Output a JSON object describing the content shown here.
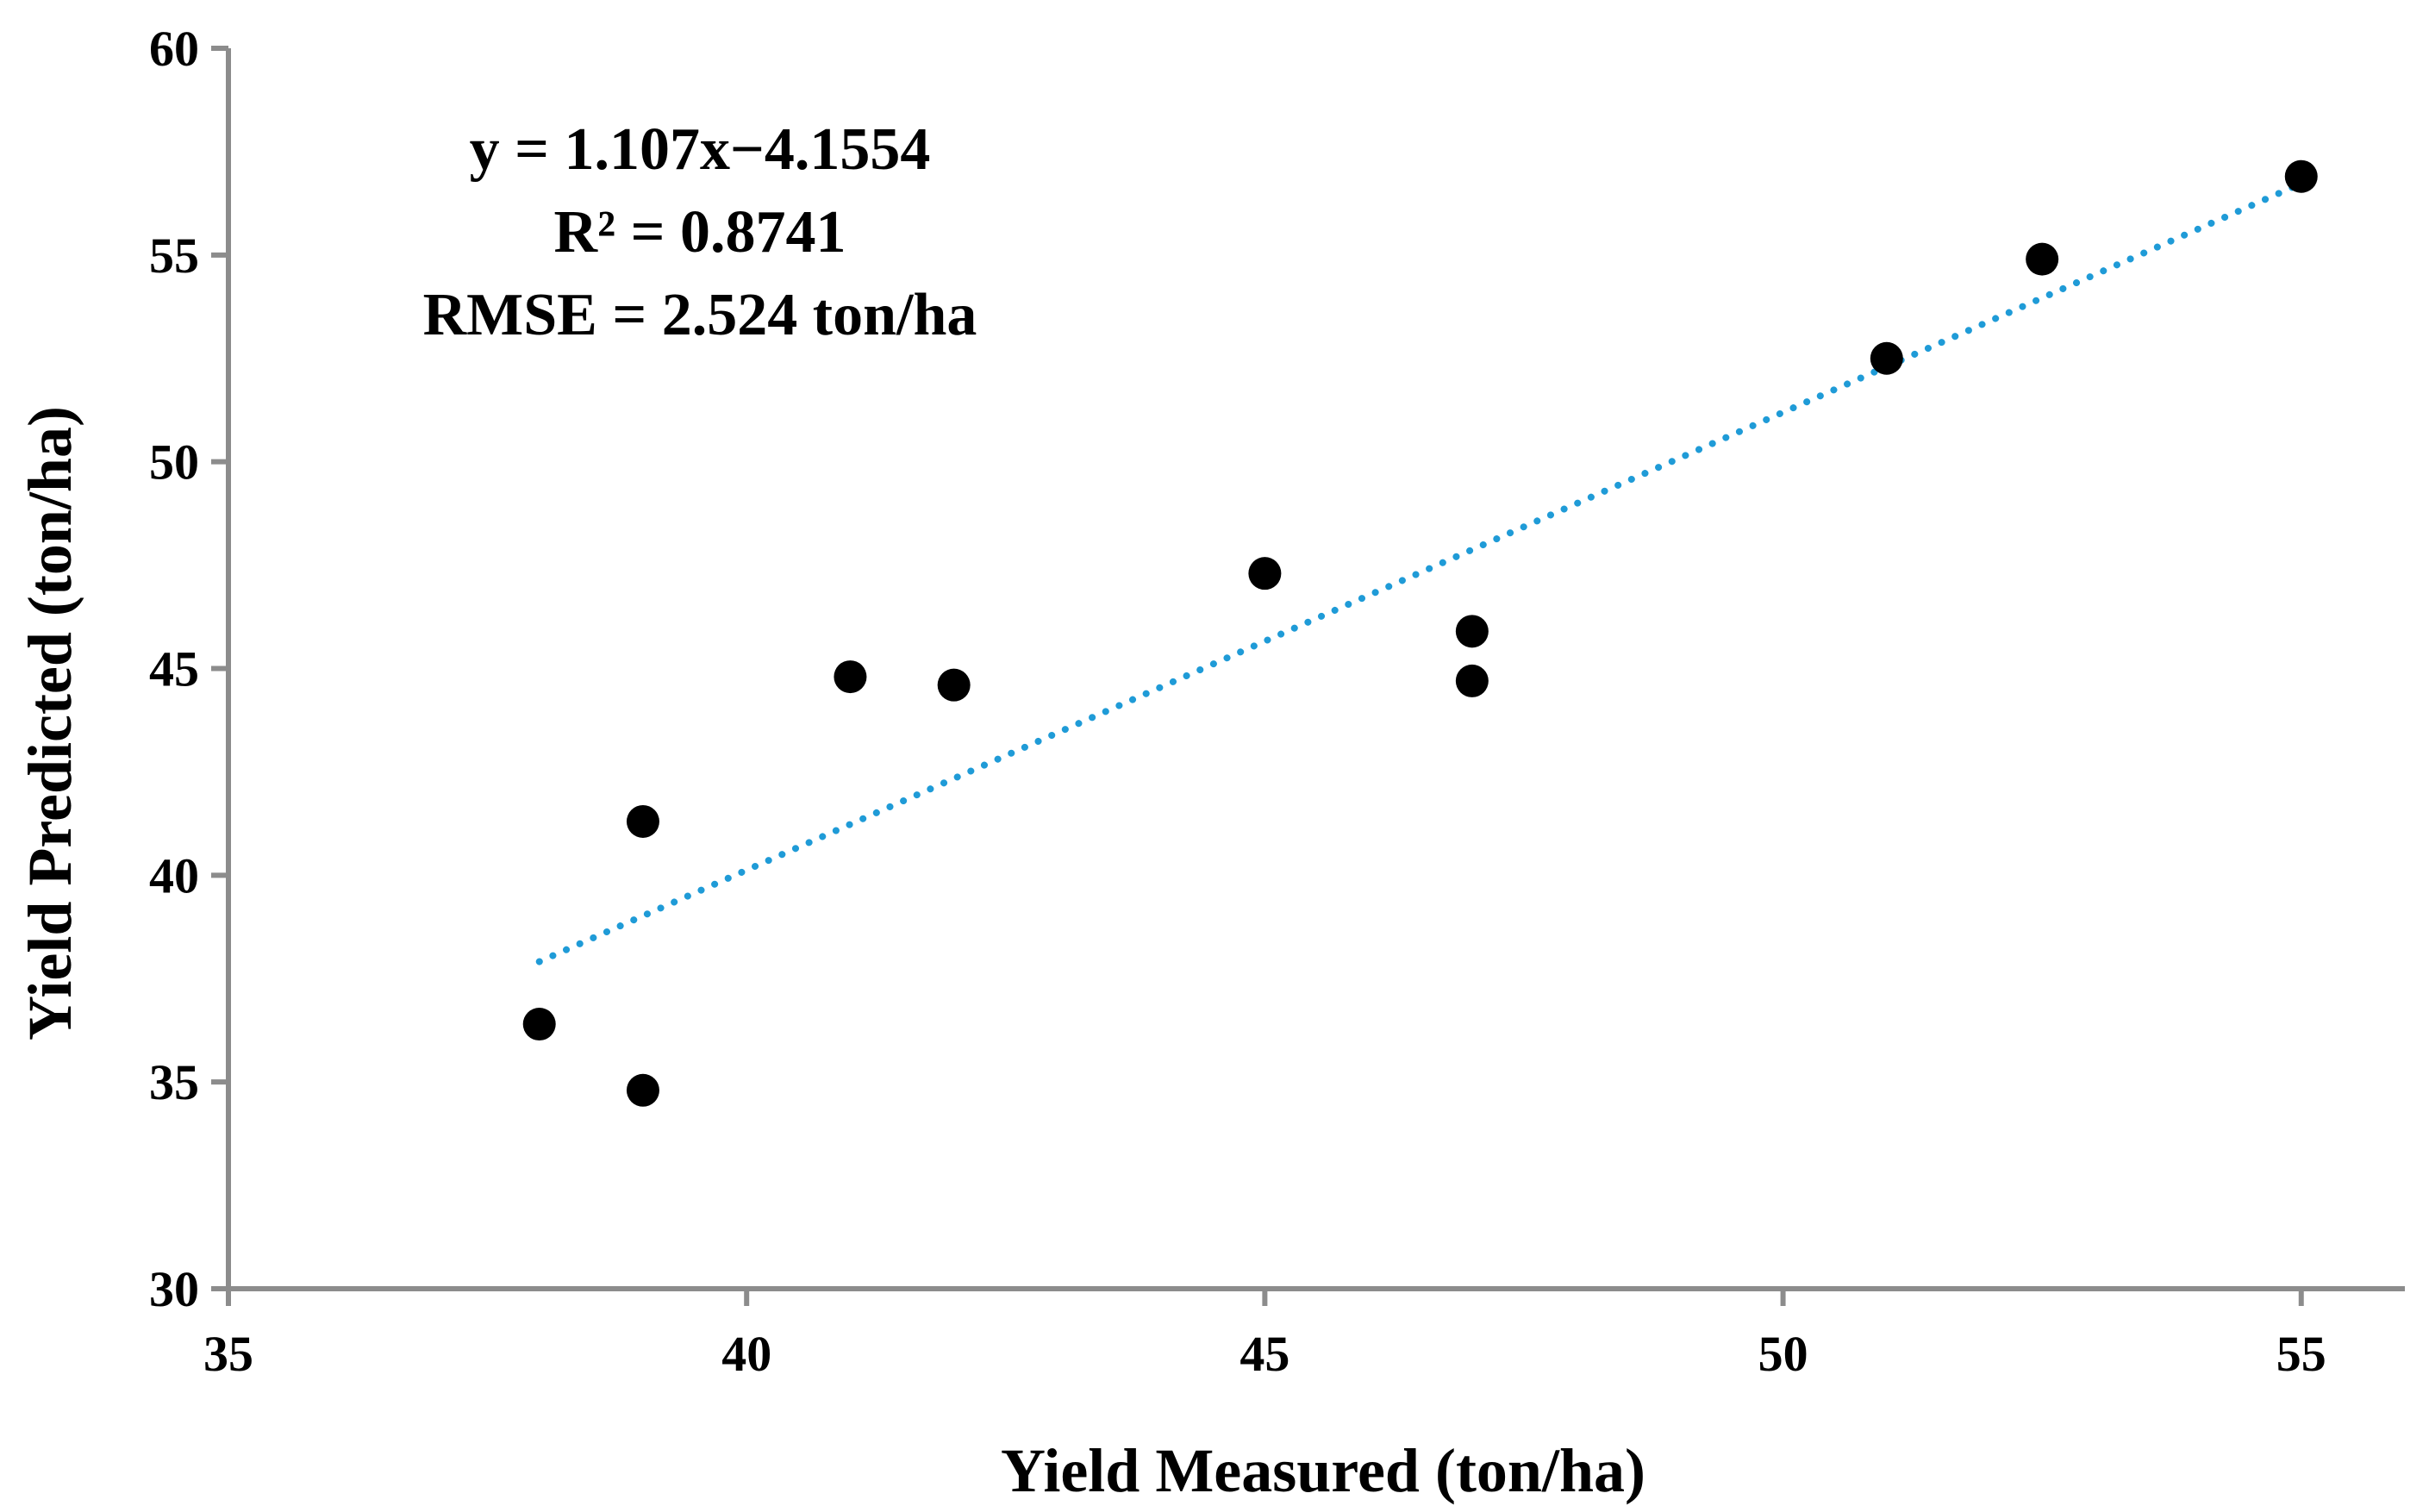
{
  "chart_data": {
    "type": "scatter",
    "title": "",
    "xlabel": "Yield Measured (ton/ha)",
    "ylabel": "Yield Predicted (ton/ha)",
    "xlim": [
      35,
      56
    ],
    "ylim": [
      30,
      60
    ],
    "xticks": [
      35,
      40,
      45,
      50,
      55
    ],
    "yticks": [
      30,
      35,
      40,
      45,
      50,
      55,
      60
    ],
    "grid": false,
    "series": [
      {
        "name": "Observations",
        "color": "#000000",
        "points": [
          {
            "x": 38,
            "y": 36.4
          },
          {
            "x": 39,
            "y": 41.3
          },
          {
            "x": 39,
            "y": 34.8
          },
          {
            "x": 41,
            "y": 44.8
          },
          {
            "x": 42,
            "y": 44.6
          },
          {
            "x": 45,
            "y": 47.3
          },
          {
            "x": 47,
            "y": 45.9
          },
          {
            "x": 47,
            "y": 44.7
          },
          {
            "x": 51,
            "y": 52.5
          },
          {
            "x": 52.5,
            "y": 54.9
          },
          {
            "x": 55,
            "y": 56.9
          }
        ]
      }
    ],
    "trendline": {
      "type": "linear",
      "style": "dotted",
      "color": "#1f9bd7",
      "slope": 1.107,
      "intercept": -4.1554,
      "x_range": [
        38,
        55
      ]
    },
    "annotations": [
      "y = 1.107x−4.1554",
      "R² = 0.8741",
      "RMSE = 2.524 ton/ha"
    ]
  }
}
